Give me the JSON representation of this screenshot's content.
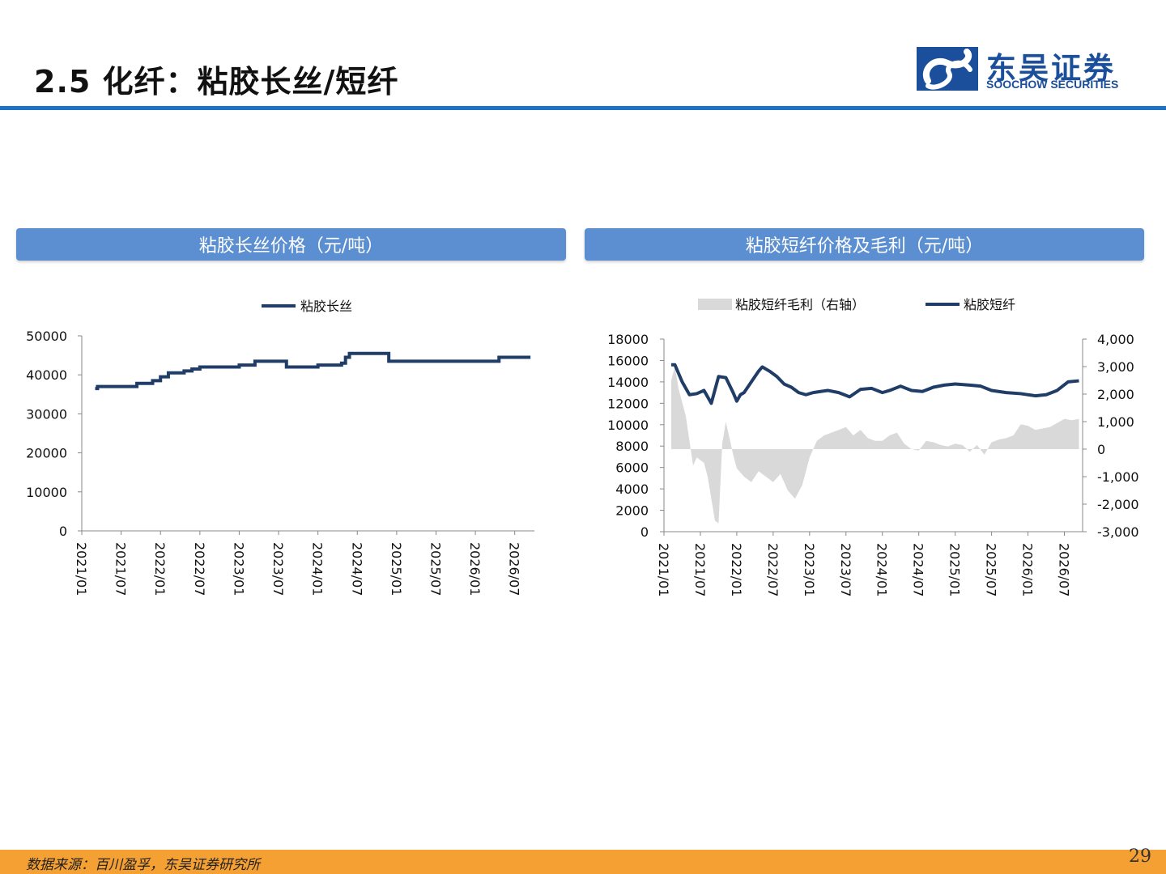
{
  "header": {
    "title": "2.5 化纤：粘胶长丝/短纤",
    "logo_cn": "东吴证券",
    "logo_en": "SOOCHOW SECURITIES"
  },
  "panels": {
    "left_title": "粘胶长丝价格（元/吨）",
    "right_title": "粘胶短纤价格及毛利（元/吨）"
  },
  "footer": {
    "source": "数据来源：百川盈孚，东吴证券研究所",
    "page": "29"
  },
  "colors": {
    "line": "#1f3d66",
    "bar": "#d9d9d9",
    "accent": "#1f73c6",
    "footer": "#f5a033"
  },
  "chart_data": [
    {
      "type": "line",
      "legend": "粘胶长丝",
      "x_ticks": [
        "2021/01",
        "2021/07",
        "2022/01",
        "2022/07",
        "2023/01",
        "2023/07",
        "2024/01",
        "2024/07",
        "2025/01",
        "2025/07",
        "2026/01",
        "2026/07"
      ],
      "ylim": [
        0,
        50000
      ],
      "y_ticks": [
        "0",
        "10000",
        "20000",
        "30000",
        "40000",
        "50000"
      ],
      "series": [
        {
          "name": "粘胶长丝",
          "x": [
            2021.17,
            2021.2,
            2021.65,
            2021.7,
            2021.9,
            2022.0,
            2022.1,
            2022.3,
            2022.4,
            2022.5,
            2023.0,
            2023.1,
            2023.2,
            2023.5,
            2023.6,
            2023.9,
            2024.0,
            2024.3,
            2024.35,
            2024.4,
            2024.7,
            2024.9,
            2025.2,
            2025.5,
            2025.9,
            2026.1,
            2026.3,
            2026.6,
            2026.7
          ],
          "y": [
            36500,
            37000,
            37000,
            37800,
            38500,
            39500,
            40500,
            41000,
            41500,
            42000,
            42500,
            42500,
            43500,
            43500,
            42000,
            42000,
            42500,
            43000,
            44500,
            45500,
            45500,
            43500,
            43500,
            43500,
            43500,
            43500,
            44500,
            44500,
            44500
          ]
        }
      ]
    },
    {
      "type": "line",
      "legend": [
        "粘胶短纤毛利（右轴）",
        "粘胶短纤"
      ],
      "x_ticks": [
        "2021/01",
        "2021/07",
        "2022/01",
        "2022/07",
        "2023/01",
        "2023/07",
        "2024/01",
        "2024/07",
        "2025/01",
        "2025/07",
        "2026/01",
        "2026/07"
      ],
      "ylim": [
        0,
        18000
      ],
      "y_ticks": [
        "0",
        "2000",
        "4000",
        "6000",
        "8000",
        "10000",
        "12000",
        "14000",
        "16000",
        "18000"
      ],
      "y2lim": [
        -3000,
        4000
      ],
      "y2_ticks": [
        "-3,000",
        "-2,000",
        "-1,000",
        "0",
        "1,000",
        "2,000",
        "3,000",
        "4,000"
      ],
      "series": [
        {
          "name": "粘胶短纤",
          "axis": "left",
          "x": [
            2021.1,
            2021.15,
            2021.25,
            2021.35,
            2021.45,
            2021.55,
            2021.65,
            2021.75,
            2021.85,
            2021.95,
            2022.0,
            2022.05,
            2022.1,
            2022.15,
            2022.2,
            2022.3,
            2022.35,
            2022.45,
            2022.55,
            2022.65,
            2022.75,
            2022.85,
            2022.95,
            2023.05,
            2023.15,
            2023.25,
            2023.4,
            2023.55,
            2023.7,
            2023.85,
            2024.0,
            2024.1,
            2024.25,
            2024.4,
            2024.55,
            2024.7,
            2024.85,
            2025.0,
            2025.2,
            2025.35,
            2025.5,
            2025.7,
            2025.9,
            2026.1,
            2026.25,
            2026.4,
            2026.55,
            2026.7
          ],
          "y": [
            15600,
            15600,
            14000,
            12800,
            12900,
            13200,
            12000,
            14500,
            14400,
            13000,
            12200,
            12800,
            13000,
            13500,
            14000,
            15000,
            15400,
            15000,
            14500,
            13800,
            13500,
            13000,
            12800,
            13000,
            13100,
            13200,
            13000,
            12600,
            13300,
            13400,
            13000,
            13200,
            13600,
            13200,
            13100,
            13500,
            13700,
            13800,
            13700,
            13600,
            13200,
            13000,
            12900,
            12700,
            12800,
            13200,
            14000,
            14100
          ]
        },
        {
          "name": "粘胶短纤毛利（右轴）",
          "axis": "right",
          "type": "area",
          "x": [
            2021.1,
            2021.15,
            2021.2,
            2021.3,
            2021.4,
            2021.45,
            2021.55,
            2021.6,
            2021.7,
            2021.75,
            2021.8,
            2021.85,
            2021.95,
            2022.0,
            2022.1,
            2022.2,
            2022.3,
            2022.4,
            2022.5,
            2022.6,
            2022.7,
            2022.8,
            2022.9,
            2023.0,
            2023.1,
            2023.2,
            2023.3,
            2023.4,
            2023.5,
            2023.6,
            2023.7,
            2023.8,
            2023.9,
            2024.0,
            2024.1,
            2024.2,
            2024.3,
            2024.4,
            2024.5,
            2024.6,
            2024.7,
            2024.8,
            2024.9,
            2025.0,
            2025.1,
            2025.2,
            2025.3,
            2025.4,
            2025.5,
            2025.6,
            2025.7,
            2025.8,
            2025.9,
            2026.0,
            2026.1,
            2026.2,
            2026.3,
            2026.4,
            2026.5,
            2026.6,
            2026.7
          ],
          "y": [
            2500,
            3000,
            2200,
            1200,
            -600,
            -300,
            -500,
            -1000,
            -2600,
            -2700,
            200,
            1000,
            -200,
            -700,
            -1000,
            -1200,
            -800,
            -1000,
            -1200,
            -900,
            -1500,
            -1800,
            -1300,
            -300,
            300,
            500,
            600,
            700,
            800,
            500,
            700,
            400,
            300,
            300,
            500,
            600,
            200,
            0,
            -50,
            300,
            250,
            150,
            100,
            200,
            150,
            -100,
            150,
            -200,
            250,
            350,
            400,
            500,
            900,
            850,
            700,
            750,
            800,
            950,
            1100,
            1050,
            1100
          ]
        }
      ]
    }
  ]
}
